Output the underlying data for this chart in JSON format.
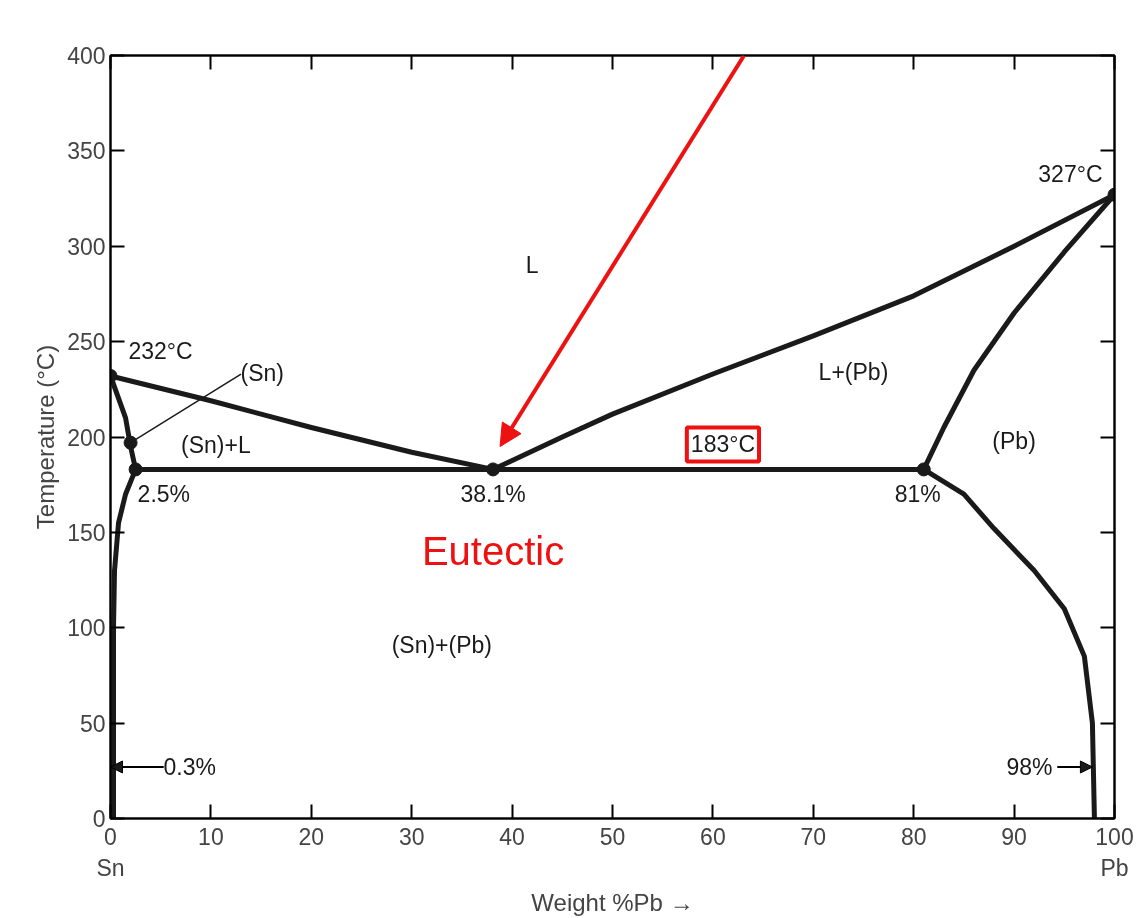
{
  "chart_data": {
    "type": "line",
    "xlabel": "Weight %Pb →",
    "ylabel": "Temperature (°C)",
    "xlim": [
      0,
      100
    ],
    "ylim": [
      0,
      400
    ],
    "xticks": [
      {
        "value": 0,
        "label": "0\nSn"
      },
      10,
      20,
      30,
      40,
      50,
      60,
      70,
      80,
      90,
      {
        "value": 100,
        "label": "100\nPb"
      }
    ],
    "yticks": [
      0,
      50,
      100,
      150,
      200,
      250,
      300,
      350,
      400
    ],
    "grid": false,
    "marker": "none",
    "line_style": "solid",
    "series": [
      {
        "color": "#1a1a1a",
        "x": [
          0,
          10,
          20,
          30,
          38.1
        ],
        "values": [
          232,
          219,
          205,
          192,
          183
        ]
      },
      {
        "color": "#1a1a1a",
        "x": [
          38.1,
          45,
          50,
          60,
          70,
          80,
          90,
          100
        ],
        "values": [
          183,
          200,
          212,
          233,
          253,
          274,
          300,
          327
        ]
      },
      {
        "color": "#1a1a1a",
        "x": [
          81,
          83,
          86,
          90,
          95,
          100
        ],
        "values": [
          183,
          205,
          235,
          265,
          297,
          327
        ]
      },
      {
        "color": "#1a1a1a",
        "x": [
          81,
          85,
          88,
          92,
          95,
          97,
          97.8,
          98
        ],
        "values": [
          183,
          170,
          152,
          130,
          110,
          85,
          50,
          0
        ]
      },
      {
        "color": "#1a1a1a",
        "x": [
          0,
          1.5,
          2,
          2.5
        ],
        "values": [
          232,
          210,
          195,
          183
        ]
      },
      {
        "color": "#1a1a1a",
        "x": [
          2.5,
          1.5,
          0.8,
          0.4,
          0.3,
          0.3
        ],
        "values": [
          183,
          170,
          155,
          130,
          100,
          0
        ]
      },
      {
        "color": "#1a1a1a",
        "x": [
          2.5,
          81
        ],
        "values": [
          183,
          183
        ]
      },
      {
        "type": "scatter",
        "marker": "circle",
        "color": "#1a1a1a",
        "x": [
          0,
          2,
          2.5,
          38.1,
          81,
          100
        ],
        "values": [
          232,
          197,
          183,
          183,
          183,
          327
        ]
      }
    ],
    "annotations": [
      "L",
      "L+(Pb)",
      "(Pb)",
      "(Sn)+L",
      "(Sn)+(Pb)",
      {
        "text": "232°C",
        "x": 0,
        "y": 232
      },
      {
        "text": "(Sn)",
        "x": 2,
        "y": 197
      },
      {
        "text": "2.5%",
        "x": 2.5,
        "y": 183
      },
      {
        "text": "38.1%",
        "x": 38.1,
        "y": 183
      },
      {
        "text": "81%",
        "x": 81,
        "y": 183
      },
      {
        "text": "327°C",
        "x": 100,
        "y": 327
      },
      {
        "text": "183°C",
        "x": 61,
        "y": 183
      },
      {
        "text": "0.3%",
        "x": 0.3,
        "y": 27
      },
      {
        "text": "98%",
        "x": 97.8,
        "y": 27
      },
      {
        "text": "Eutectic",
        "x": 38.1,
        "y": 183
      }
    ]
  }
}
